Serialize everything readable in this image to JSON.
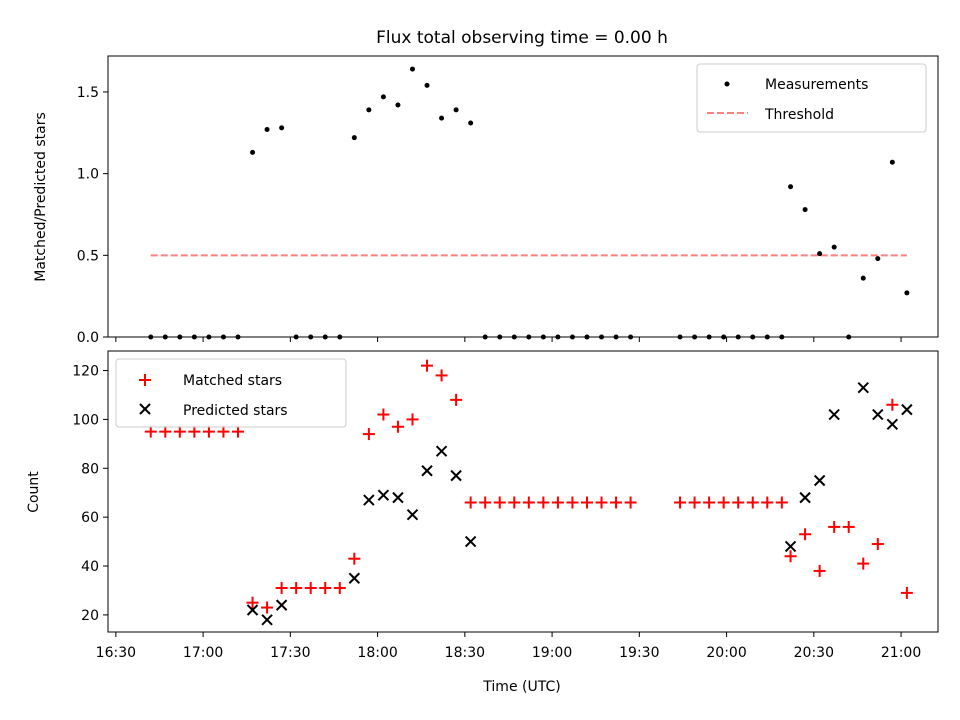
{
  "figure": {
    "title": "Flux total observing time = 0.00 h",
    "xlabel": "Time (UTC)",
    "xticks": [
      "16:30",
      "17:00",
      "17:30",
      "18:00",
      "18:30",
      "19:00",
      "19:30",
      "20:00",
      "20:30",
      "21:00"
    ]
  },
  "chart_data": [
    {
      "type": "scatter",
      "ylabel": "Matched/Predicted stars",
      "ylim": [
        0,
        1.72
      ],
      "yticks": [
        "0.0",
        "0.5",
        "1.0",
        "1.5"
      ],
      "ytick_values": [
        0,
        0.5,
        1.0,
        1.5
      ],
      "legend_position": "upper right",
      "legend": [
        "Measurements",
        "Threshold"
      ],
      "threshold": {
        "name": "Threshold",
        "value": 0.5,
        "x_range": [
          "16:42",
          "21:02"
        ],
        "color": "#ff7f7f"
      },
      "series": [
        {
          "name": "Measurements",
          "color": "#000000",
          "points": [
            [
              "16:42",
              0
            ],
            [
              "16:47",
              0
            ],
            [
              "16:52",
              0
            ],
            [
              "16:57",
              0
            ],
            [
              "17:02",
              0
            ],
            [
              "17:07",
              0
            ],
            [
              "17:12",
              0
            ],
            [
              "17:17",
              1.13
            ],
            [
              "17:22",
              1.27
            ],
            [
              "17:27",
              1.28
            ],
            [
              "17:32",
              0
            ],
            [
              "17:37",
              0
            ],
            [
              "17:42",
              0
            ],
            [
              "17:47",
              0
            ],
            [
              "17:52",
              1.22
            ],
            [
              "17:57",
              1.39
            ],
            [
              "18:02",
              1.47
            ],
            [
              "18:07",
              1.42
            ],
            [
              "18:12",
              1.64
            ],
            [
              "18:17",
              1.54
            ],
            [
              "18:22",
              1.34
            ],
            [
              "18:27",
              1.39
            ],
            [
              "18:32",
              1.31
            ],
            [
              "18:37",
              0
            ],
            [
              "18:42",
              0
            ],
            [
              "18:47",
              0
            ],
            [
              "18:52",
              0
            ],
            [
              "18:57",
              0
            ],
            [
              "19:02",
              0
            ],
            [
              "19:07",
              0
            ],
            [
              "19:12",
              0
            ],
            [
              "19:17",
              0
            ],
            [
              "19:22",
              0
            ],
            [
              "19:27",
              0
            ],
            [
              "19:44",
              0
            ],
            [
              "19:49",
              0
            ],
            [
              "19:54",
              0
            ],
            [
              "19:59",
              0
            ],
            [
              "20:04",
              0
            ],
            [
              "20:09",
              0
            ],
            [
              "20:14",
              0
            ],
            [
              "20:19",
              0
            ],
            [
              "20:22",
              0.92
            ],
            [
              "20:27",
              0.78
            ],
            [
              "20:32",
              0.51
            ],
            [
              "20:37",
              0.55
            ],
            [
              "20:42",
              0
            ],
            [
              "20:47",
              0.36
            ],
            [
              "20:52",
              0.48
            ],
            [
              "20:57",
              1.07
            ],
            [
              "21:02",
              0.27
            ]
          ]
        }
      ]
    },
    {
      "type": "scatter",
      "ylabel": "Count",
      "ylim": [
        13,
        128
      ],
      "yticks": [
        "20",
        "40",
        "60",
        "80",
        "100",
        "120"
      ],
      "ytick_values": [
        20,
        40,
        60,
        80,
        100,
        120
      ],
      "legend_position": "upper left",
      "legend": [
        "Matched stars",
        "Predicted stars"
      ],
      "series": [
        {
          "name": "Matched stars",
          "marker": "plus",
          "color": "#ff0000",
          "points": [
            [
              "16:42",
              95
            ],
            [
              "16:47",
              95
            ],
            [
              "16:52",
              95
            ],
            [
              "16:57",
              95
            ],
            [
              "17:02",
              95
            ],
            [
              "17:07",
              95
            ],
            [
              "17:12",
              95
            ],
            [
              "17:17",
              25
            ],
            [
              "17:22",
              23
            ],
            [
              "17:27",
              31
            ],
            [
              "17:32",
              31
            ],
            [
              "17:37",
              31
            ],
            [
              "17:42",
              31
            ],
            [
              "17:47",
              31
            ],
            [
              "17:52",
              43
            ],
            [
              "17:57",
              94
            ],
            [
              "18:02",
              102
            ],
            [
              "18:07",
              97
            ],
            [
              "18:12",
              100
            ],
            [
              "18:17",
              122
            ],
            [
              "18:22",
              118
            ],
            [
              "18:27",
              108
            ],
            [
              "18:32",
              66
            ],
            [
              "18:37",
              66
            ],
            [
              "18:42",
              66
            ],
            [
              "18:47",
              66
            ],
            [
              "18:52",
              66
            ],
            [
              "18:57",
              66
            ],
            [
              "19:02",
              66
            ],
            [
              "19:07",
              66
            ],
            [
              "19:12",
              66
            ],
            [
              "19:17",
              66
            ],
            [
              "19:22",
              66
            ],
            [
              "19:27",
              66
            ],
            [
              "19:44",
              66
            ],
            [
              "19:49",
              66
            ],
            [
              "19:54",
              66
            ],
            [
              "19:59",
              66
            ],
            [
              "20:04",
              66
            ],
            [
              "20:09",
              66
            ],
            [
              "20:14",
              66
            ],
            [
              "20:19",
              66
            ],
            [
              "20:22",
              44
            ],
            [
              "20:27",
              53
            ],
            [
              "20:32",
              38
            ],
            [
              "20:37",
              56
            ],
            [
              "20:42",
              56
            ],
            [
              "20:47",
              41
            ],
            [
              "20:52",
              49
            ],
            [
              "20:57",
              106
            ],
            [
              "21:02",
              29
            ]
          ]
        },
        {
          "name": "Predicted stars",
          "marker": "x",
          "color": "#000000",
          "points": [
            [
              "17:17",
              22
            ],
            [
              "17:22",
              18
            ],
            [
              "17:27",
              24
            ],
            [
              "17:52",
              35
            ],
            [
              "17:57",
              67
            ],
            [
              "18:02",
              69
            ],
            [
              "18:07",
              68
            ],
            [
              "18:12",
              61
            ],
            [
              "18:17",
              79
            ],
            [
              "18:22",
              87
            ],
            [
              "18:27",
              77
            ],
            [
              "18:32",
              50
            ],
            [
              "20:22",
              48
            ],
            [
              "20:27",
              68
            ],
            [
              "20:32",
              75
            ],
            [
              "20:37",
              102
            ],
            [
              "20:47",
              113
            ],
            [
              "20:52",
              102
            ],
            [
              "20:57",
              98
            ],
            [
              "21:02",
              104
            ]
          ]
        }
      ]
    }
  ]
}
